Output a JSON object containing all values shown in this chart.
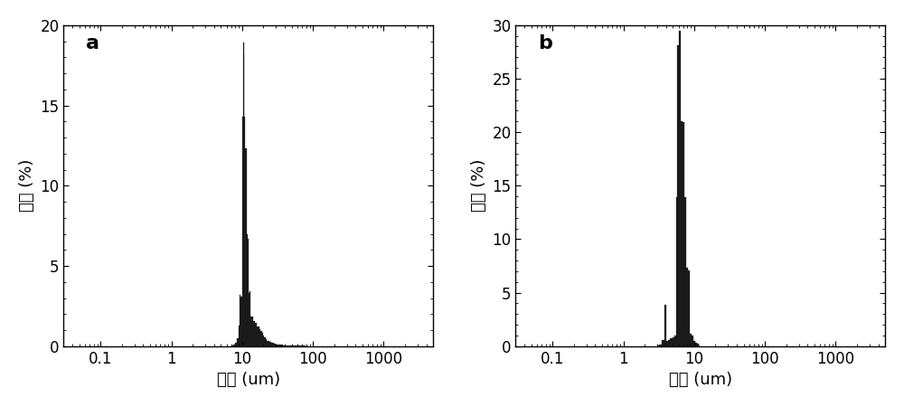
{
  "panel_a": {
    "label": "a",
    "ylabel": "含量 (%)",
    "xlabel": "粒径 (um)",
    "ylim": [
      0,
      20
    ],
    "yticks": [
      0,
      5,
      10,
      15,
      20
    ],
    "xlim_log": [
      0.03,
      5000
    ],
    "xticks": [
      0.1,
      1,
      10,
      100,
      1000
    ],
    "bar_edges": [
      7.0,
      7.5,
      8.0,
      8.5,
      9.0,
      9.3,
      9.6,
      9.9,
      10.2,
      10.5,
      10.8,
      11.1,
      11.5,
      11.9,
      12.3,
      12.7,
      13.1,
      13.6,
      14.1,
      14.6,
      15.1,
      15.7,
      16.3,
      16.9,
      17.5,
      18.2,
      18.9,
      19.7,
      20.5,
      21.5,
      22.5,
      23.5,
      24.5,
      26.0,
      28.0,
      30.0,
      32.0,
      35.0,
      38.0,
      42.0,
      47.0,
      53.0,
      60.0,
      68.0,
      78.0,
      90.0
    ],
    "bar_heights": [
      0.05,
      0.1,
      0.2,
      0.5,
      1.3,
      3.2,
      3.1,
      14.3,
      18.9,
      18.2,
      14.3,
      12.3,
      7.0,
      6.7,
      3.3,
      3.4,
      1.85,
      1.85,
      1.55,
      1.55,
      1.45,
      1.45,
      1.25,
      1.25,
      1.05,
      0.95,
      0.85,
      0.65,
      0.55,
      0.45,
      0.35,
      0.3,
      0.25,
      0.2,
      0.15,
      0.12,
      0.1,
      0.08,
      0.06,
      0.05,
      0.04,
      0.03,
      0.02,
      0.015,
      0.01
    ]
  },
  "panel_b": {
    "label": "b",
    "ylabel": "含量 (%)",
    "xlabel": "粒径 (um)",
    "ylim": [
      0,
      30
    ],
    "yticks": [
      0,
      5,
      10,
      15,
      20,
      25,
      30
    ],
    "xlim_log": [
      0.03,
      5000
    ],
    "xticks": [
      0.1,
      1,
      10,
      100,
      1000
    ],
    "bar_edges": [
      3.0,
      3.2,
      3.5,
      3.8,
      4.0,
      4.3,
      4.6,
      4.9,
      5.2,
      5.5,
      5.8,
      6.1,
      6.4,
      6.8,
      7.2,
      7.6,
      8.1,
      8.6,
      9.1,
      9.7,
      10.3,
      10.9,
      11.5,
      12.0
    ],
    "bar_heights": [
      0.05,
      0.15,
      0.6,
      3.9,
      0.5,
      0.6,
      0.7,
      0.85,
      1.0,
      13.9,
      28.1,
      29.5,
      21.0,
      20.9,
      13.9,
      7.3,
      7.1,
      1.2,
      1.0,
      0.5,
      0.3,
      0.2,
      0.1
    ]
  },
  "bar_color": "#1a1a1a",
  "bar_edgecolor": "#1a1a1a",
  "background_color": "#ffffff",
  "label_fontsize": 16,
  "tick_fontsize": 12,
  "axis_label_fontsize": 13
}
